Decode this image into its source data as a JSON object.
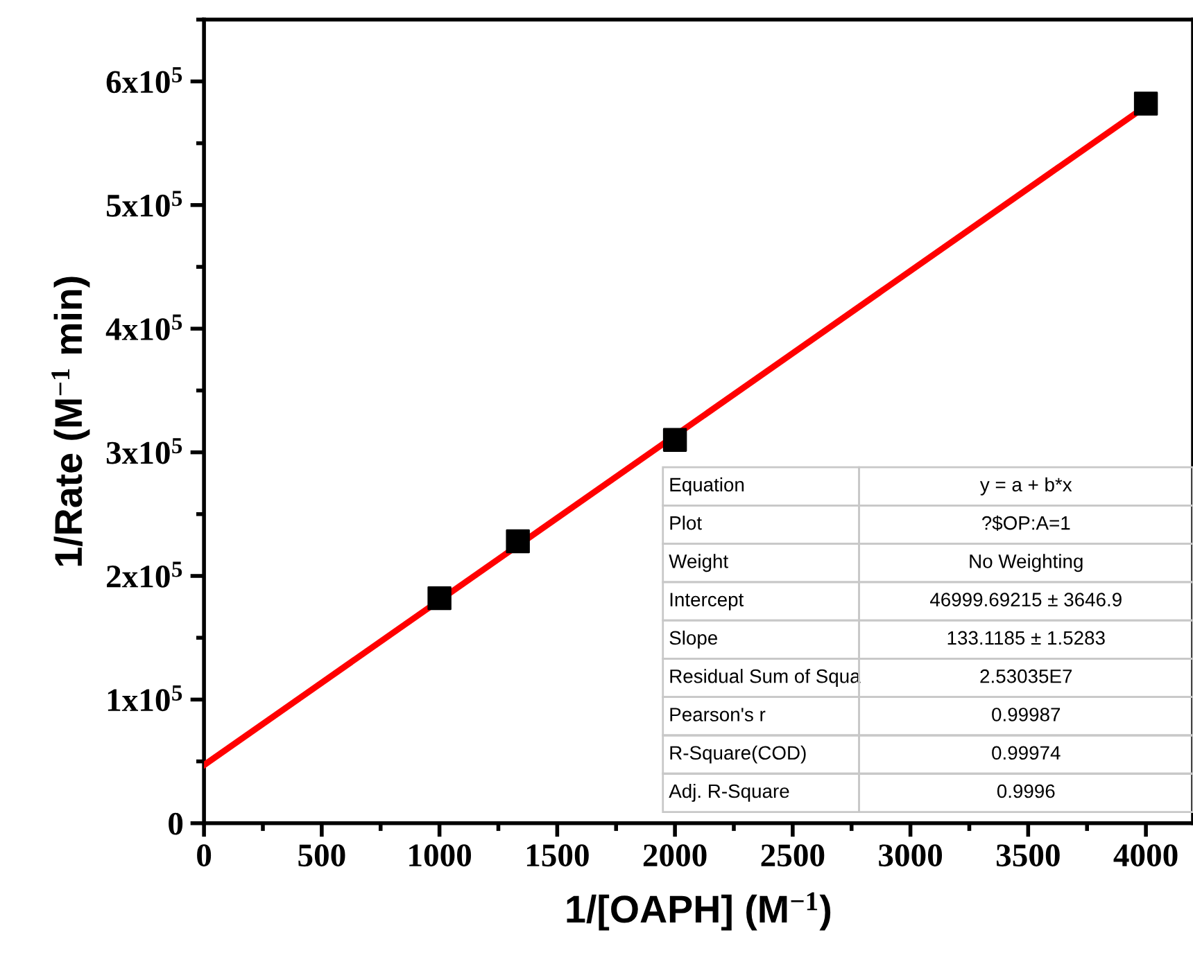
{
  "chart_data": {
    "type": "scatter",
    "xlabel": "1/[OAPH] (M$^{−1}$)",
    "ylabel": "1/Rate (M$^{−1}$ min)",
    "xlim": [
      0,
      4200
    ],
    "ylim": [
      0,
      650000
    ],
    "xticks": [
      0,
      500,
      1000,
      1500,
      2000,
      2500,
      3000,
      3500,
      4000
    ],
    "yticks": [
      0,
      {
        "value": 100000,
        "label": "1x10$^{5}$"
      },
      {
        "value": 200000,
        "label": "2x10$^{5}$"
      },
      {
        "value": 300000,
        "label": "3x10$^{5}$"
      },
      {
        "value": 400000,
        "label": "4x10$^{5}$"
      },
      {
        "value": 500000,
        "label": "5x10$^{5}$"
      },
      {
        "value": 600000,
        "label": "6x10$^{5}$"
      }
    ],
    "series": [
      {
        "marker": "square",
        "color": "#000000",
        "x": [
          1000,
          1333,
          2000,
          4000
        ],
        "values": [
          182000,
          228000,
          310000,
          582000
        ]
      },
      {
        "type": "line",
        "color": "#ff0000",
        "x": [
          0,
          4000
        ],
        "values": [
          47000,
          580000
        ]
      }
    ],
    "annotations": [
      "Equation",
      "y = a + b*x",
      "Plot",
      "?$OP:A=1",
      "Weight",
      "No Weighting",
      "Intercept",
      "46999.69215 ± 3646.9",
      "Slope",
      "133.1185 ± 1.5283",
      "Residual Sum of Squa",
      "2.53035E7",
      "Pearson's r",
      "0.99987",
      "R-Square(COD)",
      "0.99974",
      "Adj. R-Square",
      "0.9996"
    ]
  }
}
